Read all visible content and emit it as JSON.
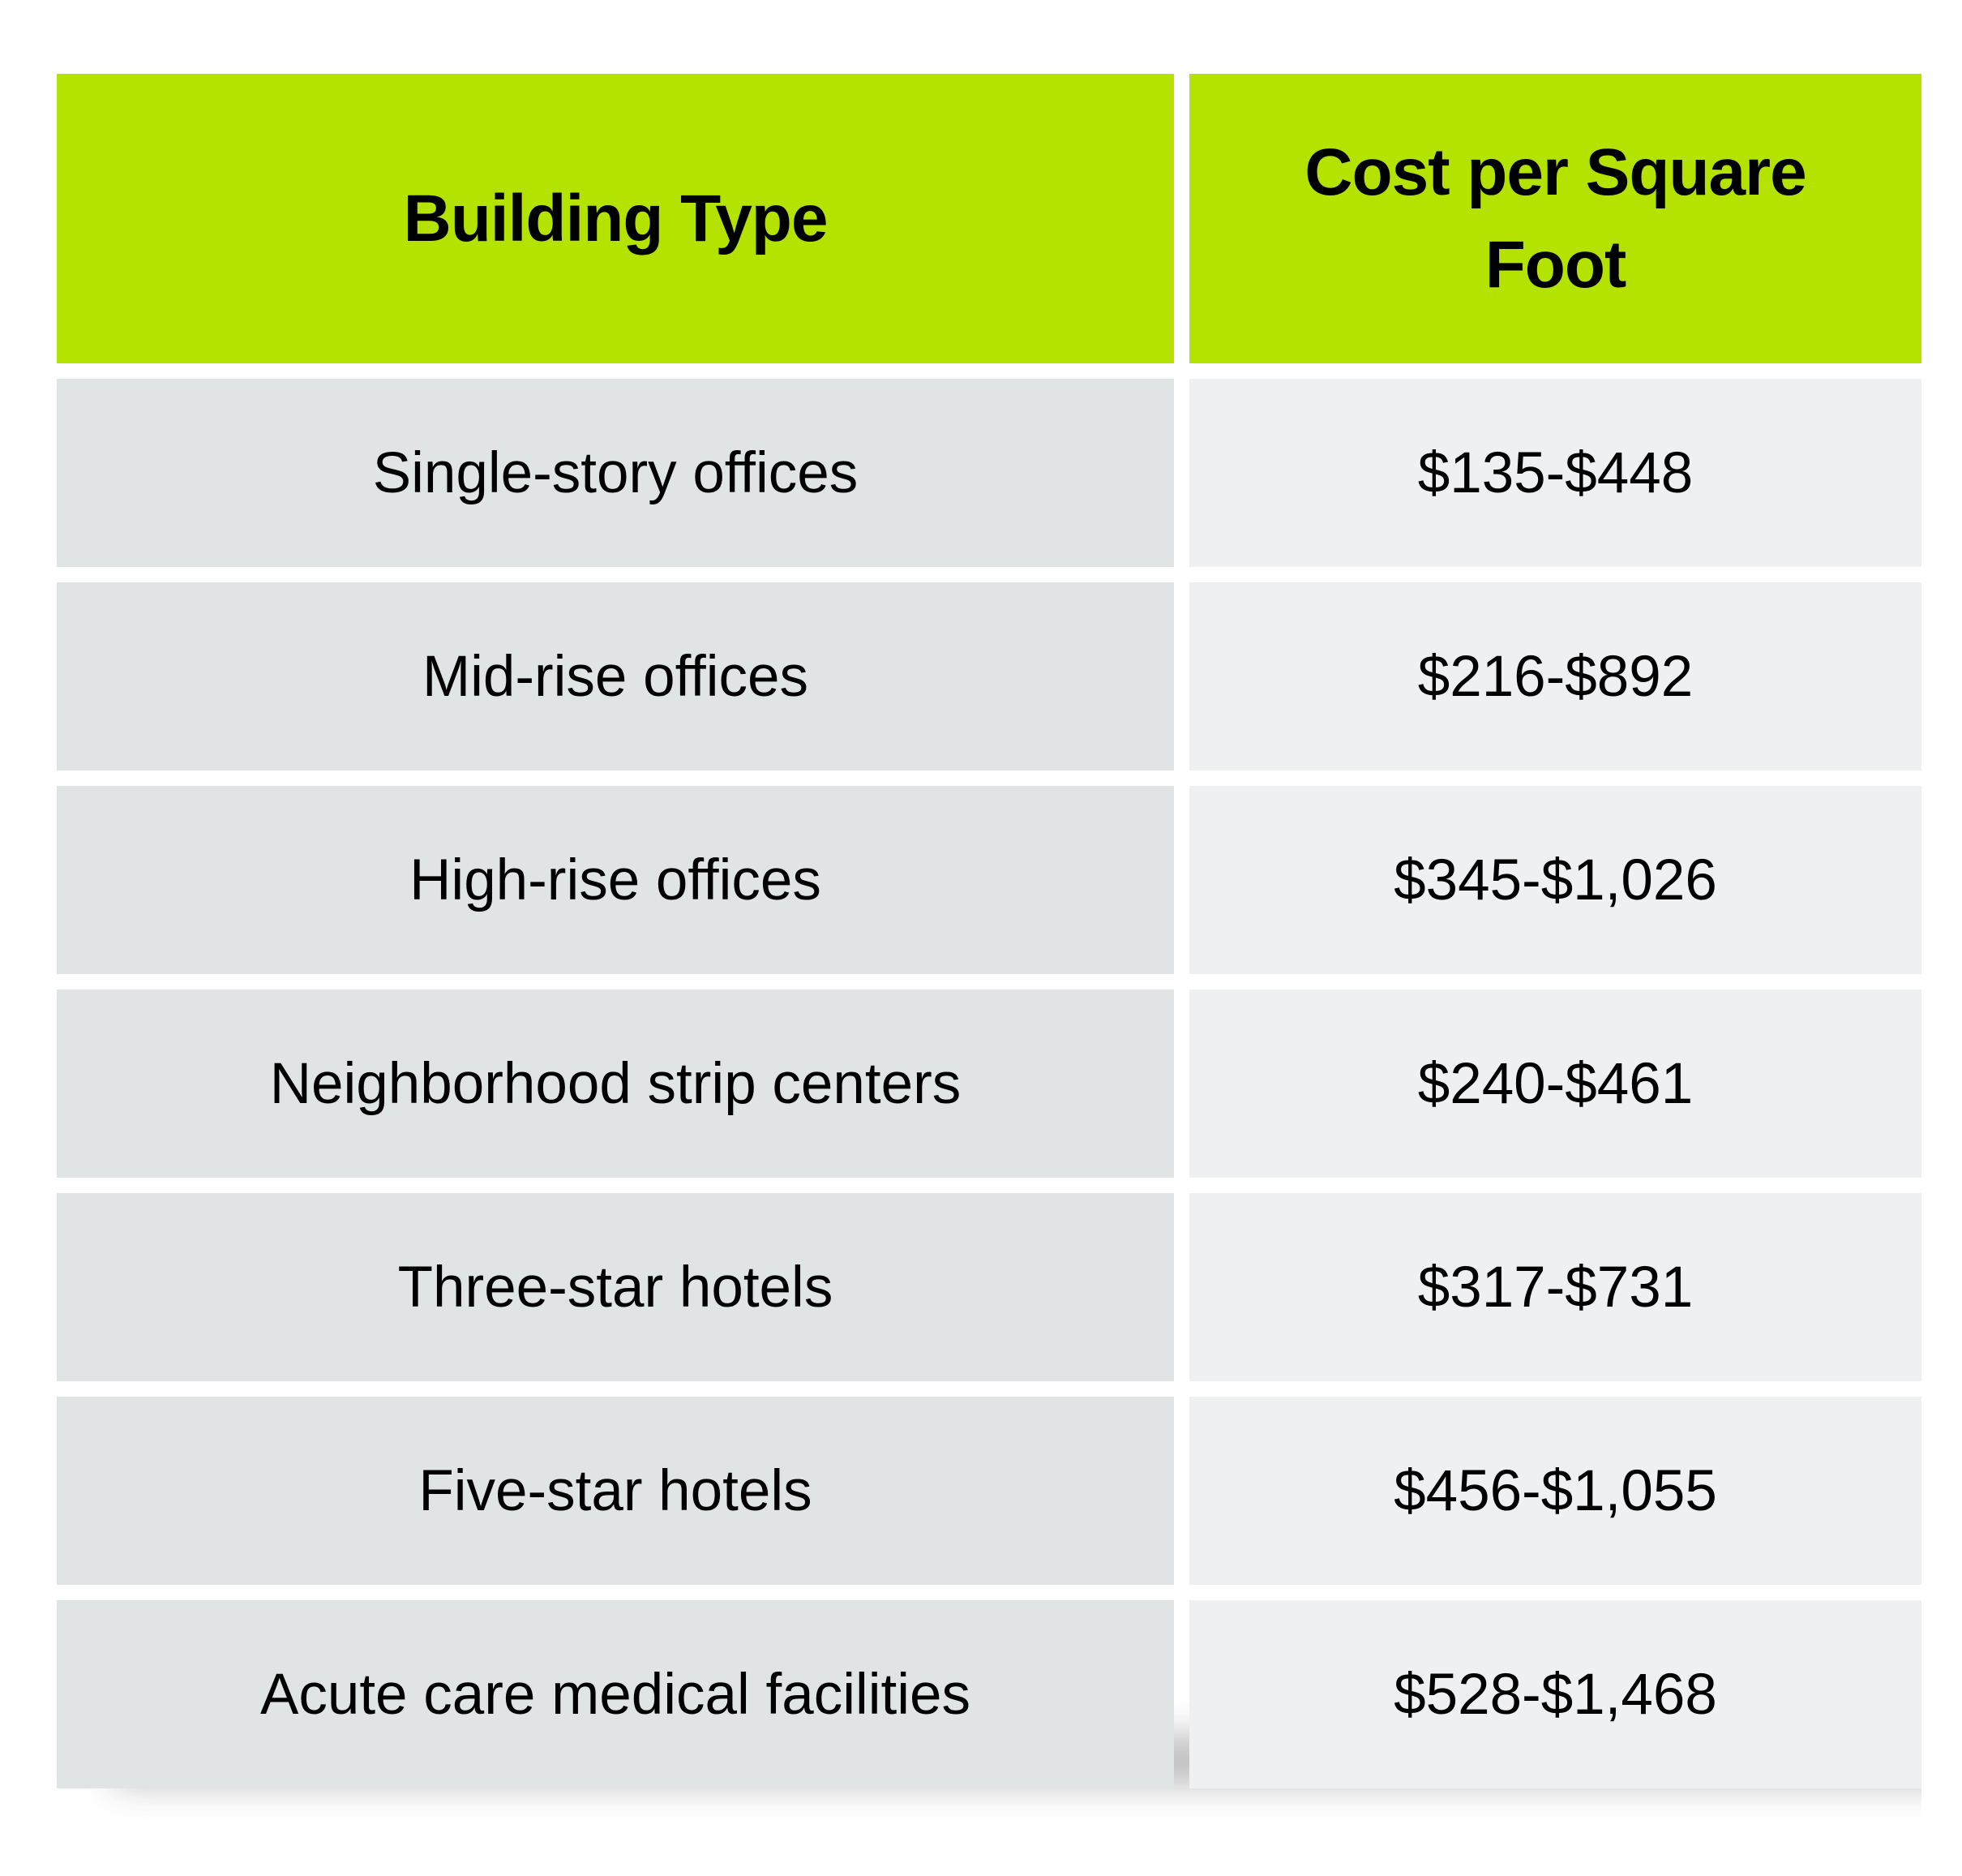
{
  "table": {
    "headers": [
      "Building Type",
      "Cost per Square Foot"
    ],
    "rows": [
      {
        "building_type": "Single-story offices",
        "cost_per_sq_ft": "$135-$448"
      },
      {
        "building_type": "Mid-rise offices",
        "cost_per_sq_ft": "$216-$892"
      },
      {
        "building_type": "High-rise offices",
        "cost_per_sq_ft": "$345-$1,026"
      },
      {
        "building_type": "Neighborhood strip centers",
        "cost_per_sq_ft": "$240-$461"
      },
      {
        "building_type": "Three-star hotels",
        "cost_per_sq_ft": "$317-$731"
      },
      {
        "building_type": "Five-star hotels",
        "cost_per_sq_ft": "$456-$1,055"
      },
      {
        "building_type": "Acute care medical facilities",
        "cost_per_sq_ft": "$528-$1,468"
      }
    ]
  },
  "colors": {
    "header_bg": "#b5e300",
    "left_cell_bg": "#e0e4e5",
    "right_cell_bg": "#eff0f2",
    "text": "#000000"
  },
  "chart_data": {
    "type": "table",
    "columns": [
      "Building Type",
      "Cost per Square Foot"
    ],
    "rows": [
      [
        "Single-story offices",
        "$135-$448"
      ],
      [
        "Mid-rise offices",
        "$216-$892"
      ],
      [
        "High-rise offices",
        "$345-$1,026"
      ],
      [
        "Neighborhood strip centers",
        "$240-$461"
      ],
      [
        "Three-star hotels",
        "$317-$731"
      ],
      [
        "Five-star hotels",
        "$456-$1,055"
      ],
      [
        "Acute care medical facilities",
        "$528-$1,468"
      ]
    ],
    "ranges_usd": [
      {
        "category": "Single-story offices",
        "min": 135,
        "max": 448
      },
      {
        "category": "Mid-rise offices",
        "min": 216,
        "max": 892
      },
      {
        "category": "High-rise offices",
        "min": 345,
        "max": 1026
      },
      {
        "category": "Neighborhood strip centers",
        "min": 240,
        "max": 461
      },
      {
        "category": "Three-star hotels",
        "min": 317,
        "max": 731
      },
      {
        "category": "Five-star hotels",
        "min": 456,
        "max": 1055
      },
      {
        "category": "Acute care medical facilities",
        "min": 528,
        "max": 1468
      }
    ]
  }
}
